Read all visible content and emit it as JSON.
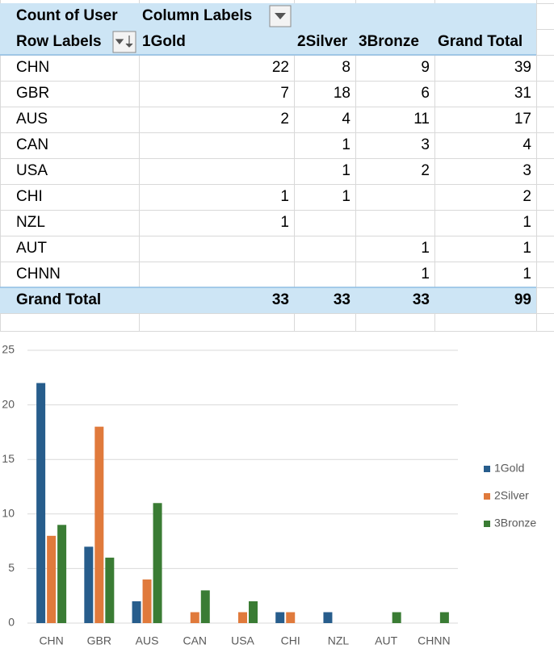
{
  "table": {
    "header": {
      "corner": "Count of User",
      "column_labels": "Column Labels",
      "row_labels": "Row Labels",
      "columns": [
        "1Gold",
        "2Silver",
        "3Bronze",
        "Grand Total"
      ]
    },
    "rows": [
      {
        "label": "CHN",
        "cells": [
          22,
          8,
          9,
          39
        ]
      },
      {
        "label": "GBR",
        "cells": [
          7,
          18,
          6,
          31
        ]
      },
      {
        "label": "AUS",
        "cells": [
          2,
          4,
          11,
          17
        ]
      },
      {
        "label": "CAN",
        "cells": [
          null,
          1,
          3,
          4
        ]
      },
      {
        "label": "USA",
        "cells": [
          null,
          1,
          2,
          3
        ]
      },
      {
        "label": "CHI",
        "cells": [
          1,
          1,
          null,
          2
        ]
      },
      {
        "label": "NZL",
        "cells": [
          1,
          null,
          null,
          1
        ]
      },
      {
        "label": "AUT",
        "cells": [
          null,
          null,
          1,
          1
        ]
      },
      {
        "label": "CHNN",
        "cells": [
          null,
          null,
          1,
          1
        ]
      }
    ],
    "total": {
      "label": "Grand Total",
      "cells": [
        33,
        33,
        33,
        99
      ]
    }
  },
  "chart_data": {
    "type": "bar",
    "categories": [
      "CHN",
      "GBR",
      "AUS",
      "CAN",
      "USA",
      "CHI",
      "NZL",
      "AUT",
      "CHNN"
    ],
    "series": [
      {
        "name": "1Gold",
        "color": "#275d8c",
        "values": [
          22,
          7,
          2,
          null,
          null,
          1,
          1,
          null,
          null
        ]
      },
      {
        "name": "2Silver",
        "color": "#e07a3c",
        "values": [
          8,
          18,
          4,
          1,
          1,
          1,
          null,
          null,
          null
        ]
      },
      {
        "name": "3Bronze",
        "color": "#3a7c34",
        "values": [
          9,
          6,
          11,
          3,
          2,
          null,
          null,
          1,
          1
        ]
      }
    ],
    "ylim": [
      0,
      25
    ],
    "yticks": [
      0,
      5,
      10,
      15,
      20,
      25
    ],
    "grid": true,
    "legend": "right"
  }
}
